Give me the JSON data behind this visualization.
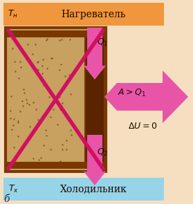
{
  "bg_color": "#f5dfc0",
  "heater_color": "#f0963c",
  "cooler_color": "#96d4e8",
  "heater_label_name": "Нагреватель",
  "cooler_label_name": "Холодильник",
  "arrow_color": "#e855a8",
  "cross_color": "#d01060",
  "engine_edge_color": "#7a3800",
  "engine_fill_color": "#c8a060",
  "piston_fill": "#5a2400",
  "footnote": "б",
  "figw": 2.79,
  "figh": 2.95,
  "dpi": 100
}
